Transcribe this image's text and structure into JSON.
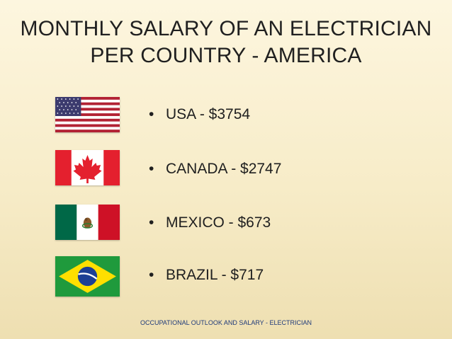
{
  "slide": {
    "title_line1": "MONTHLY SALARY OF AN ELECTRICIAN",
    "title_line2": "PER COUNTRY - AMERICA",
    "bullet_glyph": "•",
    "items": [
      {
        "text": "USA - $3754",
        "flag_icon": "usa-flag-icon"
      },
      {
        "text": "CANADA - $2747",
        "flag_icon": "canada-flag-icon"
      },
      {
        "text": "MEXICO - $673",
        "flag_icon": "mexico-flag-icon"
      },
      {
        "text": "BRAZIL - $717",
        "flag_icon": "brazil-flag-icon"
      }
    ],
    "footer": "OCCUPATIONAL OUTLOOK AND SALARY - ELECTRICIAN"
  },
  "colors": {
    "usa_red": "#b22234",
    "usa_blue": "#3c3b6e",
    "canada_red": "#e4202e",
    "mexico_green": "#006847",
    "mexico_red": "#ce1126",
    "brazil_green": "#1f9a3c",
    "brazil_yellow": "#fedf00",
    "brazil_blue": "#1c3f94"
  }
}
